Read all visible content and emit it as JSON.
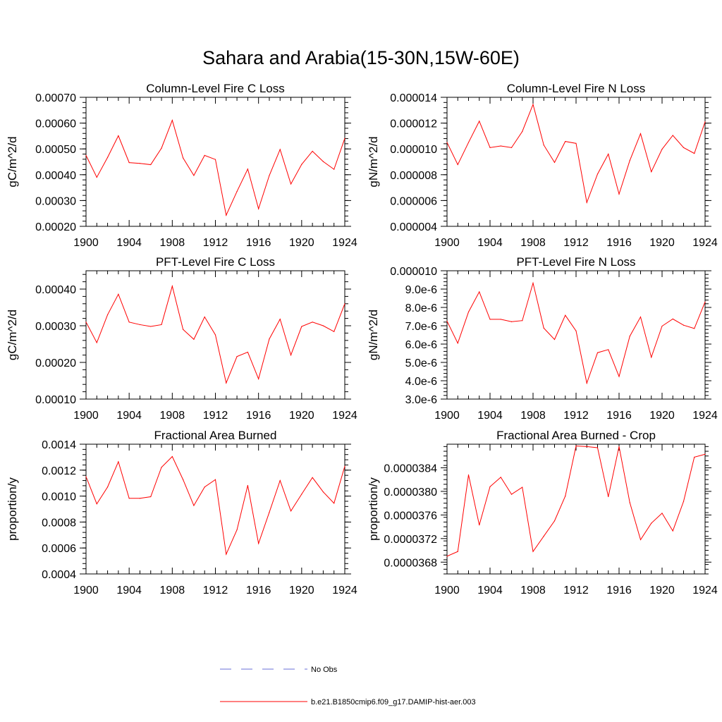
{
  "title": "Sahara and Arabia(15-30N,15W-60E)",
  "legend": [
    {
      "label": "No Obs",
      "color": "#6a6fd8",
      "dash": true
    },
    {
      "label": "b.e21.B1850cmip6.f09_g17.DAMIP-hist-aer.003",
      "color": "#ff0000",
      "dash": false
    }
  ],
  "line_color": "#ff0000",
  "chart_data": [
    {
      "type": "line",
      "title": "Column-Level Fire C Loss",
      "ylabel": "gC/m^2/d",
      "xlim": [
        1900,
        1924
      ],
      "ylim": [
        0.0002,
        0.0007
      ],
      "xticks": [
        1900,
        1904,
        1908,
        1912,
        1916,
        1920,
        1924
      ],
      "yticks": [
        0.0002,
        0.0003,
        0.0004,
        0.0005,
        0.0006,
        0.0007
      ],
      "ytick_labels": [
        "0.00020",
        "0.00030",
        "0.00040",
        "0.00050",
        "0.00060",
        "0.00070"
      ],
      "x": [
        1900,
        1901,
        1902,
        1903,
        1904,
        1905,
        1906,
        1907,
        1908,
        1909,
        1910,
        1911,
        1912,
        1913,
        1914,
        1915,
        1916,
        1917,
        1918,
        1919,
        1920,
        1921,
        1922,
        1923,
        1924
      ],
      "series": [
        {
          "name": "b.e21.B1850cmip6.f09_g17.DAMIP-hist-aer.003",
          "values": [
            0.000475,
            0.00039,
            0.000467,
            0.000551,
            0.000447,
            0.000444,
            0.000439,
            0.000503,
            0.000611,
            0.000465,
            0.000397,
            0.000475,
            0.000459,
            0.000243,
            0.000335,
            0.000422,
            0.000268,
            0.000397,
            0.000498,
            0.000364,
            0.00044,
            0.000491,
            0.000451,
            0.000421,
            0.000541
          ]
        }
      ]
    },
    {
      "type": "line",
      "title": "Column-Level Fire N Loss",
      "ylabel": "gN/m^2/d",
      "xlim": [
        1900,
        1924
      ],
      "ylim": [
        4e-06,
        1.4e-05
      ],
      "xticks": [
        1900,
        1904,
        1908,
        1912,
        1916,
        1920,
        1924
      ],
      "yticks": [
        4e-06,
        6e-06,
        8e-06,
        1e-05,
        1.2e-05,
        1.4e-05
      ],
      "ytick_labels": [
        "0.000004",
        "0.000006",
        "0.000008",
        "0.000010",
        "0.000012",
        "0.000014"
      ],
      "x": [
        1900,
        1901,
        1902,
        1903,
        1904,
        1905,
        1906,
        1907,
        1908,
        1909,
        1910,
        1911,
        1912,
        1913,
        1914,
        1915,
        1916,
        1917,
        1918,
        1919,
        1920,
        1921,
        1922,
        1923,
        1924
      ],
      "series": [
        {
          "name": "b.e21.B1850cmip6.f09_g17.DAMIP-hist-aer.003",
          "values": [
            1.05e-05,
            8.78e-06,
            1.05e-05,
            1.215e-05,
            1.01e-05,
            1.023e-05,
            1.01e-05,
            1.135e-05,
            1.345e-05,
            1.03e-05,
            8.95e-06,
            1.058e-05,
            1.043e-05,
            5.85e-06,
            8.05e-06,
            9.6e-06,
            6.5e-06,
            9.1e-06,
            1.118e-05,
            8.23e-06,
            9.98e-06,
            1.105e-05,
            1.01e-05,
            9.65e-06,
            1.21e-05
          ]
        }
      ]
    },
    {
      "type": "line",
      "title": "PFT-Level Fire C Loss",
      "ylabel": "gC/m^2/d",
      "xlim": [
        1900,
        1924
      ],
      "ylim": [
        0.0001,
        0.00045
      ],
      "xticks": [
        1900,
        1904,
        1908,
        1912,
        1916,
        1920,
        1924
      ],
      "yticks": [
        0.0001,
        0.0002,
        0.0003,
        0.0004
      ],
      "ytick_labels": [
        "0.00010",
        "0.00020",
        "0.00030",
        "0.00040"
      ],
      "x": [
        1900,
        1901,
        1902,
        1903,
        1904,
        1905,
        1906,
        1907,
        1908,
        1909,
        1910,
        1911,
        1912,
        1913,
        1914,
        1915,
        1916,
        1917,
        1918,
        1919,
        1920,
        1921,
        1922,
        1923,
        1924
      ],
      "series": [
        {
          "name": "b.e21.B1850cmip6.f09_g17.DAMIP-hist-aer.003",
          "values": [
            0.00031,
            0.000254,
            0.00033,
            0.000386,
            0.00031,
            0.000303,
            0.000298,
            0.000303,
            0.000408,
            0.00029,
            0.000263,
            0.000324,
            0.000275,
            0.000144,
            0.000216,
            0.000228,
            0.000155,
            0.000264,
            0.000318,
            0.00022,
            0.000298,
            0.00031,
            0.0003,
            0.000284,
            0.00036
          ]
        }
      ]
    },
    {
      "type": "line",
      "title": "PFT-Level Fire N Loss",
      "ylabel": "gN/m^2/d",
      "xlim": [
        1900,
        1924
      ],
      "ylim": [
        3e-06,
        1e-05
      ],
      "xticks": [
        1900,
        1904,
        1908,
        1912,
        1916,
        1920,
        1924
      ],
      "yticks": [
        3e-06,
        4e-06,
        5e-06,
        6e-06,
        7e-06,
        8e-06,
        9e-06,
        1e-05
      ],
      "ytick_labels": [
        "3.0e-6",
        "4.0e-6",
        "5.0e-6",
        "6.0e-6",
        "7.0e-6",
        "8.0e-6",
        "9.0e-6",
        "0.000010"
      ],
      "x": [
        1900,
        1901,
        1902,
        1903,
        1904,
        1905,
        1906,
        1907,
        1908,
        1909,
        1910,
        1911,
        1912,
        1913,
        1914,
        1915,
        1916,
        1917,
        1918,
        1919,
        1920,
        1921,
        1922,
        1923,
        1924
      ],
      "series": [
        {
          "name": "b.e21.B1850cmip6.f09_g17.DAMIP-hist-aer.003",
          "values": [
            7.25e-06,
            6.05e-06,
            7.75e-06,
            8.85e-06,
            7.35e-06,
            7.35e-06,
            7.22e-06,
            7.28e-06,
            9.33e-06,
            6.87e-06,
            6.25e-06,
            7.57e-06,
            6.72e-06,
            3.87e-06,
            5.53e-06,
            5.7e-06,
            4.23e-06,
            6.43e-06,
            7.48e-06,
            5.28e-06,
            6.98e-06,
            7.37e-06,
            7.03e-06,
            6.85e-06,
            8.3e-06
          ]
        }
      ]
    },
    {
      "type": "line",
      "title": "Fractional Area Burned",
      "ylabel": "proportion/y",
      "xlim": [
        1900,
        1924
      ],
      "ylim": [
        0.0004,
        0.0014
      ],
      "xticks": [
        1900,
        1904,
        1908,
        1912,
        1916,
        1920,
        1924
      ],
      "yticks": [
        0.0004,
        0.0006,
        0.0008,
        0.001,
        0.0012,
        0.0014
      ],
      "ytick_labels": [
        "0.0004",
        "0.0006",
        "0.0008",
        "0.0010",
        "0.0012",
        "0.0014"
      ],
      "x": [
        1900,
        1901,
        1902,
        1903,
        1904,
        1905,
        1906,
        1907,
        1908,
        1909,
        1910,
        1911,
        1912,
        1913,
        1914,
        1915,
        1916,
        1917,
        1918,
        1919,
        1920,
        1921,
        1922,
        1923,
        1924
      ],
      "series": [
        {
          "name": "b.e21.B1850cmip6.f09_g17.DAMIP-hist-aer.003",
          "values": [
            0.00115,
            0.00094,
            0.00107,
            0.001265,
            0.000983,
            0.000983,
            0.000995,
            0.001222,
            0.001305,
            0.001127,
            0.000927,
            0.00107,
            0.001127,
            0.000552,
            0.00074,
            0.001082,
            0.000635,
            0.000875,
            0.00112,
            0.000885,
            0.001015,
            0.001143,
            0.001032,
            0.000945,
            0.00123
          ]
        }
      ]
    },
    {
      "type": "line",
      "title": "Fractional Area Burned - Crop",
      "ylabel": "proportion/y",
      "xlim": [
        1900,
        1924
      ],
      "ylim": [
        3.66e-05,
        3.88e-05
      ],
      "xticks": [
        1900,
        1904,
        1908,
        1912,
        1916,
        1920,
        1924
      ],
      "yticks": [
        3.68e-05,
        3.72e-05,
        3.76e-05,
        3.8e-05,
        3.84e-05
      ],
      "ytick_labels": [
        "0.0000368",
        "0.0000372",
        "0.0000376",
        "0.0000380",
        "0.0000384"
      ],
      "x": [
        1900,
        1901,
        1902,
        1903,
        1904,
        1905,
        1906,
        1907,
        1908,
        1909,
        1910,
        1911,
        1912,
        1913,
        1914,
        1915,
        1916,
        1917,
        1918,
        1919,
        1920,
        1921,
        1922,
        1923,
        1924
      ],
      "series": [
        {
          "name": "b.e21.B1850cmip6.f09_g17.DAMIP-hist-aer.003",
          "values": [
            3.69e-05,
            3.698e-05,
            3.828e-05,
            3.743e-05,
            3.808e-05,
            3.824e-05,
            3.795e-05,
            3.807e-05,
            3.698e-05,
            3.724e-05,
            3.75e-05,
            3.792e-05,
            3.877e-05,
            3.876e-05,
            3.874e-05,
            3.791e-05,
            3.876e-05,
            3.781e-05,
            3.718e-05,
            3.746e-05,
            3.763e-05,
            3.733e-05,
            3.783e-05,
            3.858e-05,
            3.863e-05
          ]
        }
      ]
    }
  ]
}
